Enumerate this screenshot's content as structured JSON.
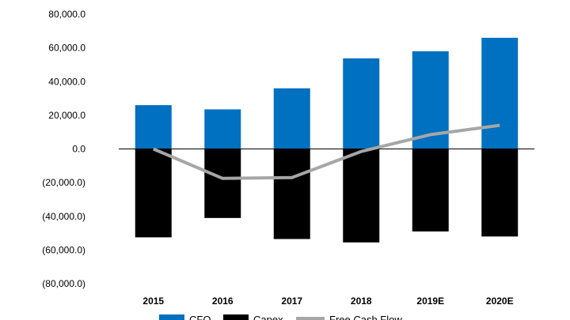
{
  "chart_data": {
    "type": "bar",
    "categories": [
      "2015",
      "2016",
      "2017",
      "2018",
      "2019E",
      "2020E"
    ],
    "series": [
      {
        "name": "CFO",
        "kind": "bar",
        "color": "#0070C0",
        "values": [
          26000,
          23500,
          36000,
          53800,
          58000,
          66000
        ]
      },
      {
        "name": "Capex",
        "kind": "bar",
        "color": "#000000",
        "values": [
          -52500,
          -41000,
          -53500,
          -55500,
          -49000,
          -52000
        ]
      },
      {
        "name": "Free Cash Flow",
        "kind": "line",
        "color": "#A6A6A6",
        "values": [
          0,
          -17500,
          -17000,
          -1500,
          8500,
          14000
        ]
      }
    ],
    "ylim": [
      -80000,
      80000
    ],
    "yticks": [
      80000,
      60000,
      40000,
      20000,
      0,
      -20000,
      -40000,
      -60000,
      -80000
    ],
    "ytick_labels": [
      "80,000.0",
      "60,000.0",
      "40,000.0",
      "20,000.0",
      "0.0",
      "(20,000.0)",
      "(40,000.0)",
      "(60,000.0)",
      "(80,000.0)"
    ],
    "grid": false,
    "legend_position": "bottom"
  }
}
